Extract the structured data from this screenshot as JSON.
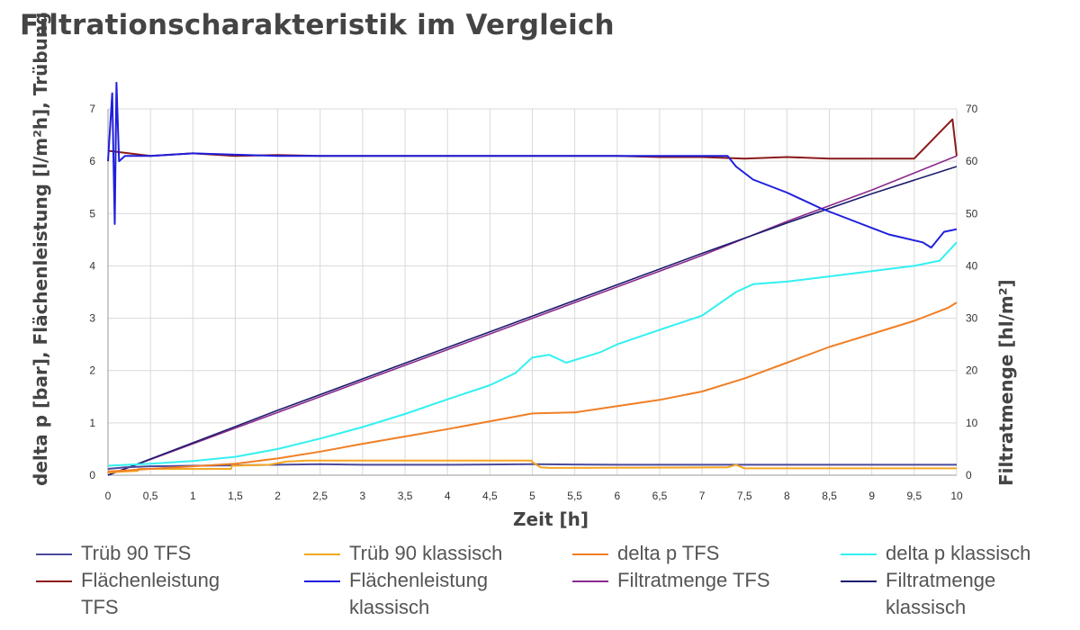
{
  "page_title": "Filtrationscharakteristik im Vergleich",
  "chart_data": {
    "type": "line",
    "title": "Filtrationscharakteristik im Vergleich",
    "xlabel": "Zeit [h]",
    "ylabel": "delta p [bar], Flächenleistung [l/m²h], Trübung",
    "y2label": "Filtratmenge [hl/m²]",
    "xlim": [
      0,
      10
    ],
    "ylim": [
      0,
      7
    ],
    "y2lim": [
      0,
      70
    ],
    "grid": true,
    "legend_position": "bottom",
    "x_ticks": [
      "0",
      "0,5",
      "1",
      "1,5",
      "2",
      "2,5",
      "3",
      "3,5",
      "4",
      "4,5",
      "5",
      "5,5",
      "6",
      "6,5",
      "7",
      "7,5",
      "8",
      "8,5",
      "9",
      "9,5",
      "10"
    ],
    "y_ticks": [
      "0",
      "1",
      "2",
      "3",
      "4",
      "5",
      "6",
      "7"
    ],
    "y2_ticks": [
      "0",
      "10",
      "20",
      "30",
      "40",
      "50",
      "60",
      "70"
    ],
    "series": [
      {
        "name": "Trüb 90 TFS",
        "color": "#4a4a9c",
        "axis": "left",
        "x": [
          0,
          0.2,
          0.5,
          1,
          1.5,
          2,
          2.5,
          3,
          4,
          5,
          6,
          7,
          8,
          9,
          10
        ],
        "y": [
          0.12,
          0.15,
          0.17,
          0.18,
          0.19,
          0.2,
          0.21,
          0.2,
          0.2,
          0.21,
          0.2,
          0.2,
          0.2,
          0.2,
          0.2
        ]
      },
      {
        "name": "Trüb 90 klassisch",
        "color": "#f5a623",
        "axis": "left",
        "x": [
          0,
          0.2,
          0.35,
          0.36,
          1.45,
          1.46,
          1.9,
          2.1,
          2.35,
          2.9,
          3.5,
          4,
          4.5,
          4.99,
          5.0,
          5.1,
          5.2,
          7.3,
          7.4,
          7.5,
          10
        ],
        "y": [
          0.05,
          0.07,
          0.08,
          0.12,
          0.12,
          0.18,
          0.2,
          0.26,
          0.28,
          0.28,
          0.28,
          0.28,
          0.28,
          0.28,
          0.25,
          0.15,
          0.14,
          0.15,
          0.2,
          0.13,
          0.13
        ]
      },
      {
        "name": "delta p TFS",
        "color": "#f07f25",
        "axis": "left",
        "x": [
          0,
          0.5,
          1,
          1.5,
          2,
          2.5,
          3,
          3.5,
          4,
          4.5,
          5,
          5.5,
          6,
          6.5,
          7,
          7.5,
          8,
          8.5,
          9,
          9.5,
          9.9,
          10
        ],
        "y": [
          0.07,
          0.12,
          0.17,
          0.22,
          0.32,
          0.45,
          0.6,
          0.74,
          0.88,
          1.03,
          1.18,
          1.2,
          1.32,
          1.44,
          1.6,
          1.85,
          2.15,
          2.45,
          2.7,
          2.95,
          3.2,
          3.3
        ]
      },
      {
        "name": "delta p klassisch",
        "color": "#33f0f0",
        "axis": "left",
        "x": [
          0,
          0.5,
          1,
          1.5,
          2,
          2.5,
          3,
          3.5,
          4,
          4.5,
          4.8,
          5,
          5.2,
          5.4,
          5.8,
          6,
          6.5,
          7,
          7.4,
          7.6,
          8,
          8.5,
          9,
          9.5,
          9.8,
          10
        ],
        "y": [
          0.18,
          0.22,
          0.27,
          0.35,
          0.5,
          0.7,
          0.92,
          1.17,
          1.45,
          1.72,
          1.95,
          2.25,
          2.3,
          2.15,
          2.35,
          2.5,
          2.78,
          3.05,
          3.5,
          3.65,
          3.7,
          3.8,
          3.9,
          4.0,
          4.1,
          4.45
        ]
      },
      {
        "name": "Flächenleistung TFS",
        "color": "#8b1a1a",
        "axis": "left",
        "x": [
          0,
          0.5,
          1,
          1.5,
          2,
          2.5,
          3,
          3.5,
          4,
          4.5,
          5,
          5.5,
          6,
          6.5,
          7,
          7.5,
          8,
          8.5,
          9,
          9.5,
          9.95,
          10
        ],
        "y": [
          6.2,
          6.1,
          6.15,
          6.1,
          6.12,
          6.1,
          6.1,
          6.1,
          6.1,
          6.1,
          6.1,
          6.1,
          6.1,
          6.08,
          6.08,
          6.05,
          6.08,
          6.05,
          6.05,
          6.05,
          6.8,
          6.1
        ]
      },
      {
        "name": "Flächenleistung klassisch",
        "color": "#1f1fdd",
        "axis": "left",
        "x": [
          0,
          0.05,
          0.08,
          0.1,
          0.13,
          0.2,
          0.5,
          1,
          2,
          3,
          4,
          5,
          5.5,
          6,
          6.5,
          7,
          7.3,
          7.4,
          7.6,
          8,
          8.4,
          8.8,
          9.2,
          9.6,
          9.7,
          9.85,
          10
        ],
        "y": [
          6.0,
          7.3,
          4.8,
          7.5,
          6.0,
          6.1,
          6.1,
          6.15,
          6.1,
          6.1,
          6.1,
          6.1,
          6.1,
          6.1,
          6.1,
          6.1,
          6.1,
          5.9,
          5.65,
          5.4,
          5.1,
          4.85,
          4.6,
          4.45,
          4.35,
          4.65,
          4.7
        ]
      },
      {
        "name": "Filtratmenge TFS",
        "color": "#8b2b8b",
        "axis": "right",
        "x": [
          0,
          1,
          2,
          3,
          4,
          5,
          6,
          7,
          8,
          9,
          10
        ],
        "y": [
          0,
          6,
          12,
          18,
          24,
          30,
          36,
          42,
          48.5,
          54.5,
          61
        ]
      },
      {
        "name": "Filtratmenge klassisch",
        "color": "#1c1c6e",
        "axis": "right",
        "x": [
          0,
          1,
          2,
          3,
          4,
          5,
          6,
          7,
          8,
          9,
          10
        ],
        "y": [
          0,
          6.2,
          12.4,
          18.4,
          24.4,
          30.4,
          36.4,
          42.4,
          48.2,
          53.8,
          59
        ]
      }
    ]
  }
}
